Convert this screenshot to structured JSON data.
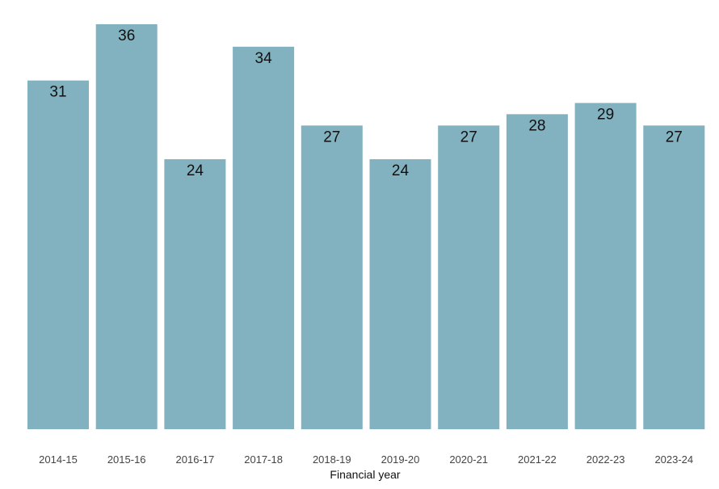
{
  "chart_data": {
    "type": "bar",
    "title": "",
    "xlabel": "Financial year",
    "ylabel": "",
    "categories": [
      "2014-15",
      "2015-16",
      "2016-17",
      "2017-18",
      "2018-19",
      "2019-20",
      "2020-21",
      "2021-22",
      "2022-23",
      "2023-24"
    ],
    "values": [
      31,
      36,
      24,
      34,
      27,
      24,
      27,
      28,
      29,
      27
    ],
    "ylim": [
      0,
      36
    ],
    "bar_color": "#82b1c0",
    "data_labels": true,
    "grid": false,
    "legend": "none"
  }
}
